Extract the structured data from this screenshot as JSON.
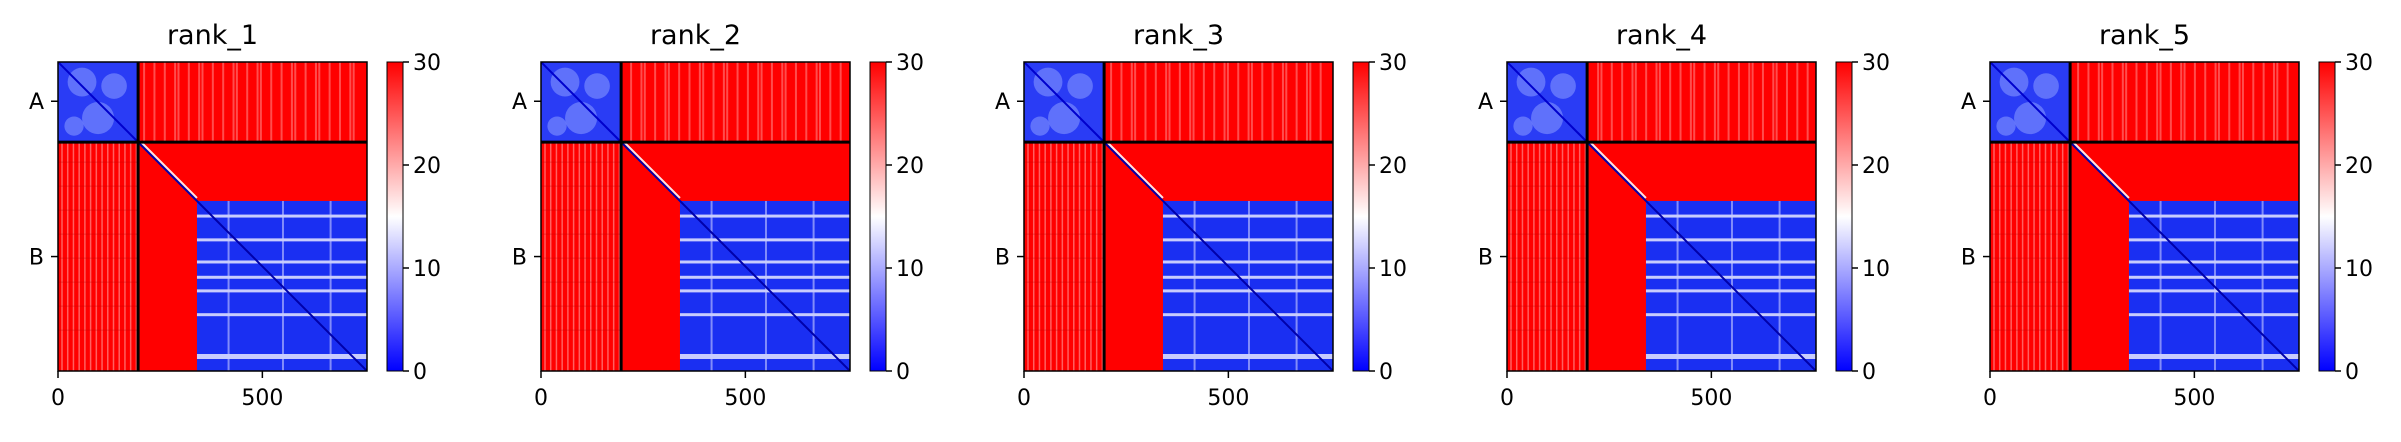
{
  "chart_data": {
    "type": "heatmap",
    "colormap": "bwr",
    "colorbar": {
      "min": 0,
      "max": 30,
      "ticks": [
        0,
        10,
        20,
        30
      ]
    },
    "x_ticks": [
      0,
      500
    ],
    "x_range": [
      0,
      756
    ],
    "y_ticks": [
      {
        "label": "A",
        "position": 96
      },
      {
        "label": "B",
        "position": 476
      }
    ],
    "chain_boundary": 196,
    "total_residues": 756,
    "panels": [
      {
        "title": "rank_1"
      },
      {
        "title": "rank_2"
      },
      {
        "title": "rank_3"
      },
      {
        "title": "rank_4"
      },
      {
        "title": "rank_5"
      }
    ],
    "colors": {
      "low": "#0000ff",
      "mid": "#ffffff",
      "high": "#ff0000"
    }
  }
}
